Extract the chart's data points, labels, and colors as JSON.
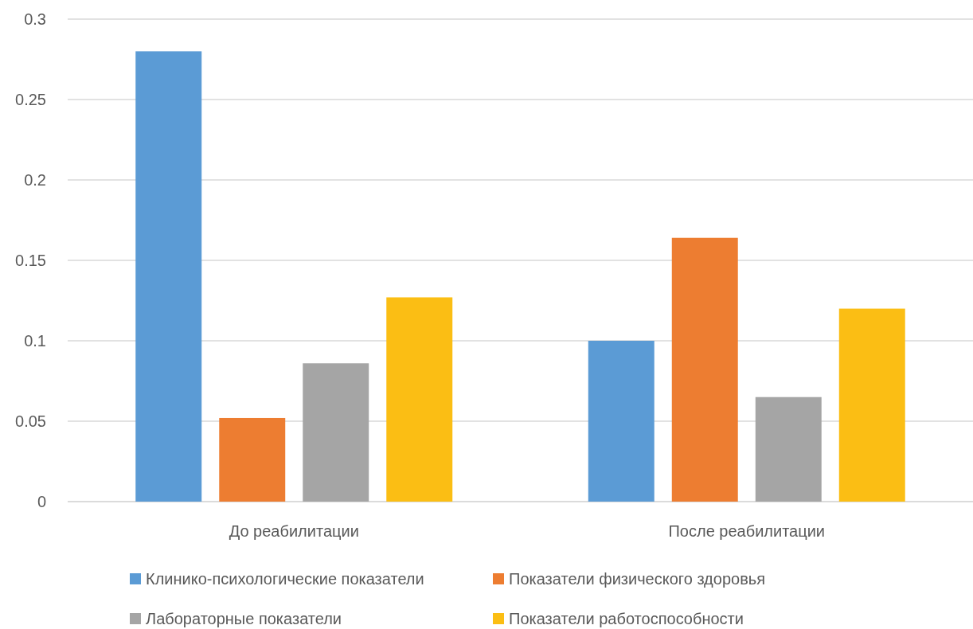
{
  "chart_data": {
    "type": "bar",
    "categories": [
      "До реабилитации",
      "После реабилитации"
    ],
    "series": [
      {
        "name": "Клинико-психологические показатели",
        "color": "#5b9bd5",
        "values": [
          0.28,
          0.1
        ]
      },
      {
        "name": "Показатели физического здоровья",
        "color": "#ed7d31",
        "values": [
          0.052,
          0.164
        ]
      },
      {
        "name": "Лабораторные показатели",
        "color": "#a5a5a5",
        "values": [
          0.086,
          0.065
        ]
      },
      {
        "name": "Показатели работоспособности",
        "color": "#fbbe14",
        "values": [
          0.127,
          0.12
        ]
      }
    ],
    "ylim": [
      0,
      0.3
    ],
    "yticks": [
      0,
      0.05,
      0.1,
      0.15,
      0.2,
      0.25,
      0.3
    ],
    "grid": "y",
    "legend": "bottom"
  }
}
